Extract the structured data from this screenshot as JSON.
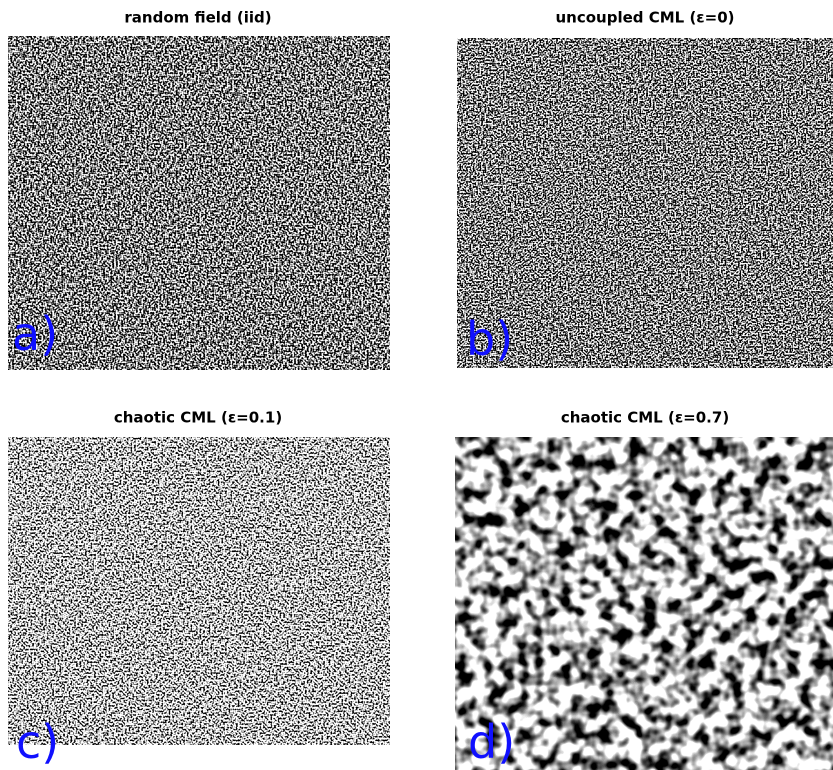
{
  "panels": [
    {
      "title": "random field (iid)",
      "label": "a)"
    },
    {
      "title": "uncoupled CML (ε=0)",
      "label": "b)"
    },
    {
      "title": "chaotic CML (ε=0.1)",
      "label": "c)"
    },
    {
      "title": "chaotic CML (ε=0.7)",
      "label": "d)"
    }
  ]
}
